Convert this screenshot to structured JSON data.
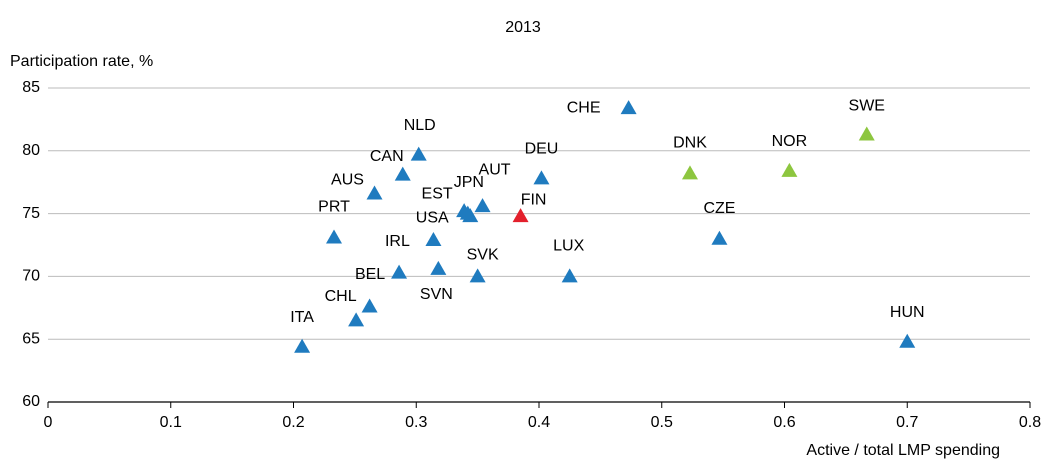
{
  "chart_data": {
    "type": "scatter",
    "title": "2013",
    "y_label": "Participation rate, %",
    "x_label": "Active / total LMP spending",
    "labels": [
      "ITA",
      null,
      "CHL",
      "BEL",
      "PRT",
      "AUS",
      "CAN",
      "NLD",
      "IRL",
      "SVN",
      "EST",
      "JPN",
      "USA",
      "AUT",
      "SVK",
      "FIN",
      "DEU",
      "LUX",
      "CHE",
      "DNK",
      "CZE",
      "NOR",
      "SWE",
      "HUN"
    ],
    "x": [
      0.207,
      0.251,
      0.262,
      0.286,
      0.233,
      0.266,
      0.289,
      0.302,
      0.314,
      0.318,
      0.339,
      0.342,
      0.344,
      0.354,
      0.35,
      0.385,
      0.402,
      0.425,
      0.473,
      0.523,
      0.547,
      0.604,
      0.667,
      0.7
    ],
    "y": [
      64.4,
      66.5,
      67.6,
      70.3,
      73.1,
      76.6,
      78.1,
      79.7,
      72.9,
      70.6,
      75.2,
      75.0,
      74.8,
      75.6,
      70.0,
      74.8,
      77.8,
      70.0,
      83.4,
      78.2,
      73.0,
      78.4,
      81.3,
      64.8
    ],
    "colors": [
      "#1f7bbf",
      "#1f7bbf",
      "#1f7bbf",
      "#1f7bbf",
      "#1f7bbf",
      "#1f7bbf",
      "#1f7bbf",
      "#1f7bbf",
      "#1f7bbf",
      "#1f7bbf",
      "#1f7bbf",
      "#1f7bbf",
      "#1f7bbf",
      "#1f7bbf",
      "#1f7bbf",
      "#e3202c",
      "#1f7bbf",
      "#1f7bbf",
      "#1f7bbf",
      "#8dc63f",
      "#1f7bbf",
      "#8dc63f",
      "#8dc63f",
      "#1f7bbf"
    ],
    "xlim": [
      0,
      0.8
    ],
    "ylim": [
      60,
      85
    ],
    "xticks": [
      0,
      0.1,
      0.2,
      0.3,
      0.4,
      0.5,
      0.6,
      0.7,
      0.8
    ],
    "yticks": [
      60,
      65,
      70,
      75,
      80,
      85
    ],
    "grid": true
  }
}
